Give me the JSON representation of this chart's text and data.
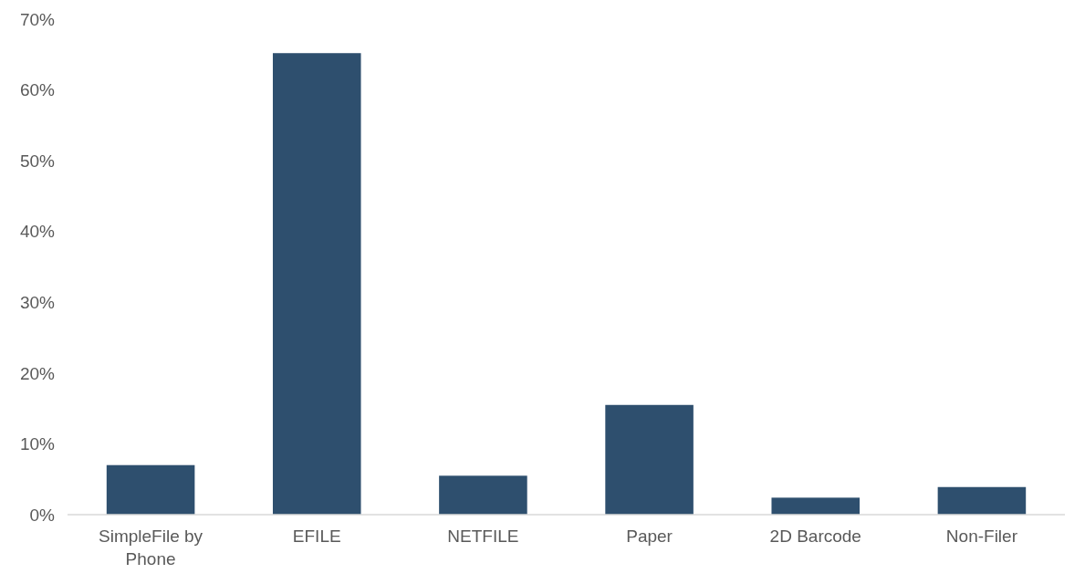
{
  "chart_data": {
    "type": "bar",
    "categories": [
      "SimpleFile by Phone",
      "EFILE",
      "NETFILE",
      "Paper",
      "2D Barcode",
      "Non-Filer"
    ],
    "values": [
      7.0,
      65.2,
      5.5,
      15.5,
      2.4,
      3.9
    ],
    "color": "#2e4f6e",
    "ylim": [
      0,
      70
    ],
    "yticks": [
      {
        "value": 0,
        "label": "0%"
      },
      {
        "value": 10,
        "label": "10%"
      },
      {
        "value": 20,
        "label": "20%"
      },
      {
        "value": 30,
        "label": "30%"
      },
      {
        "value": 40,
        "label": "40%"
      },
      {
        "value": 50,
        "label": "50%"
      },
      {
        "value": 60,
        "label": "60%"
      },
      {
        "value": 70,
        "label": "70%"
      }
    ],
    "grid": false
  }
}
